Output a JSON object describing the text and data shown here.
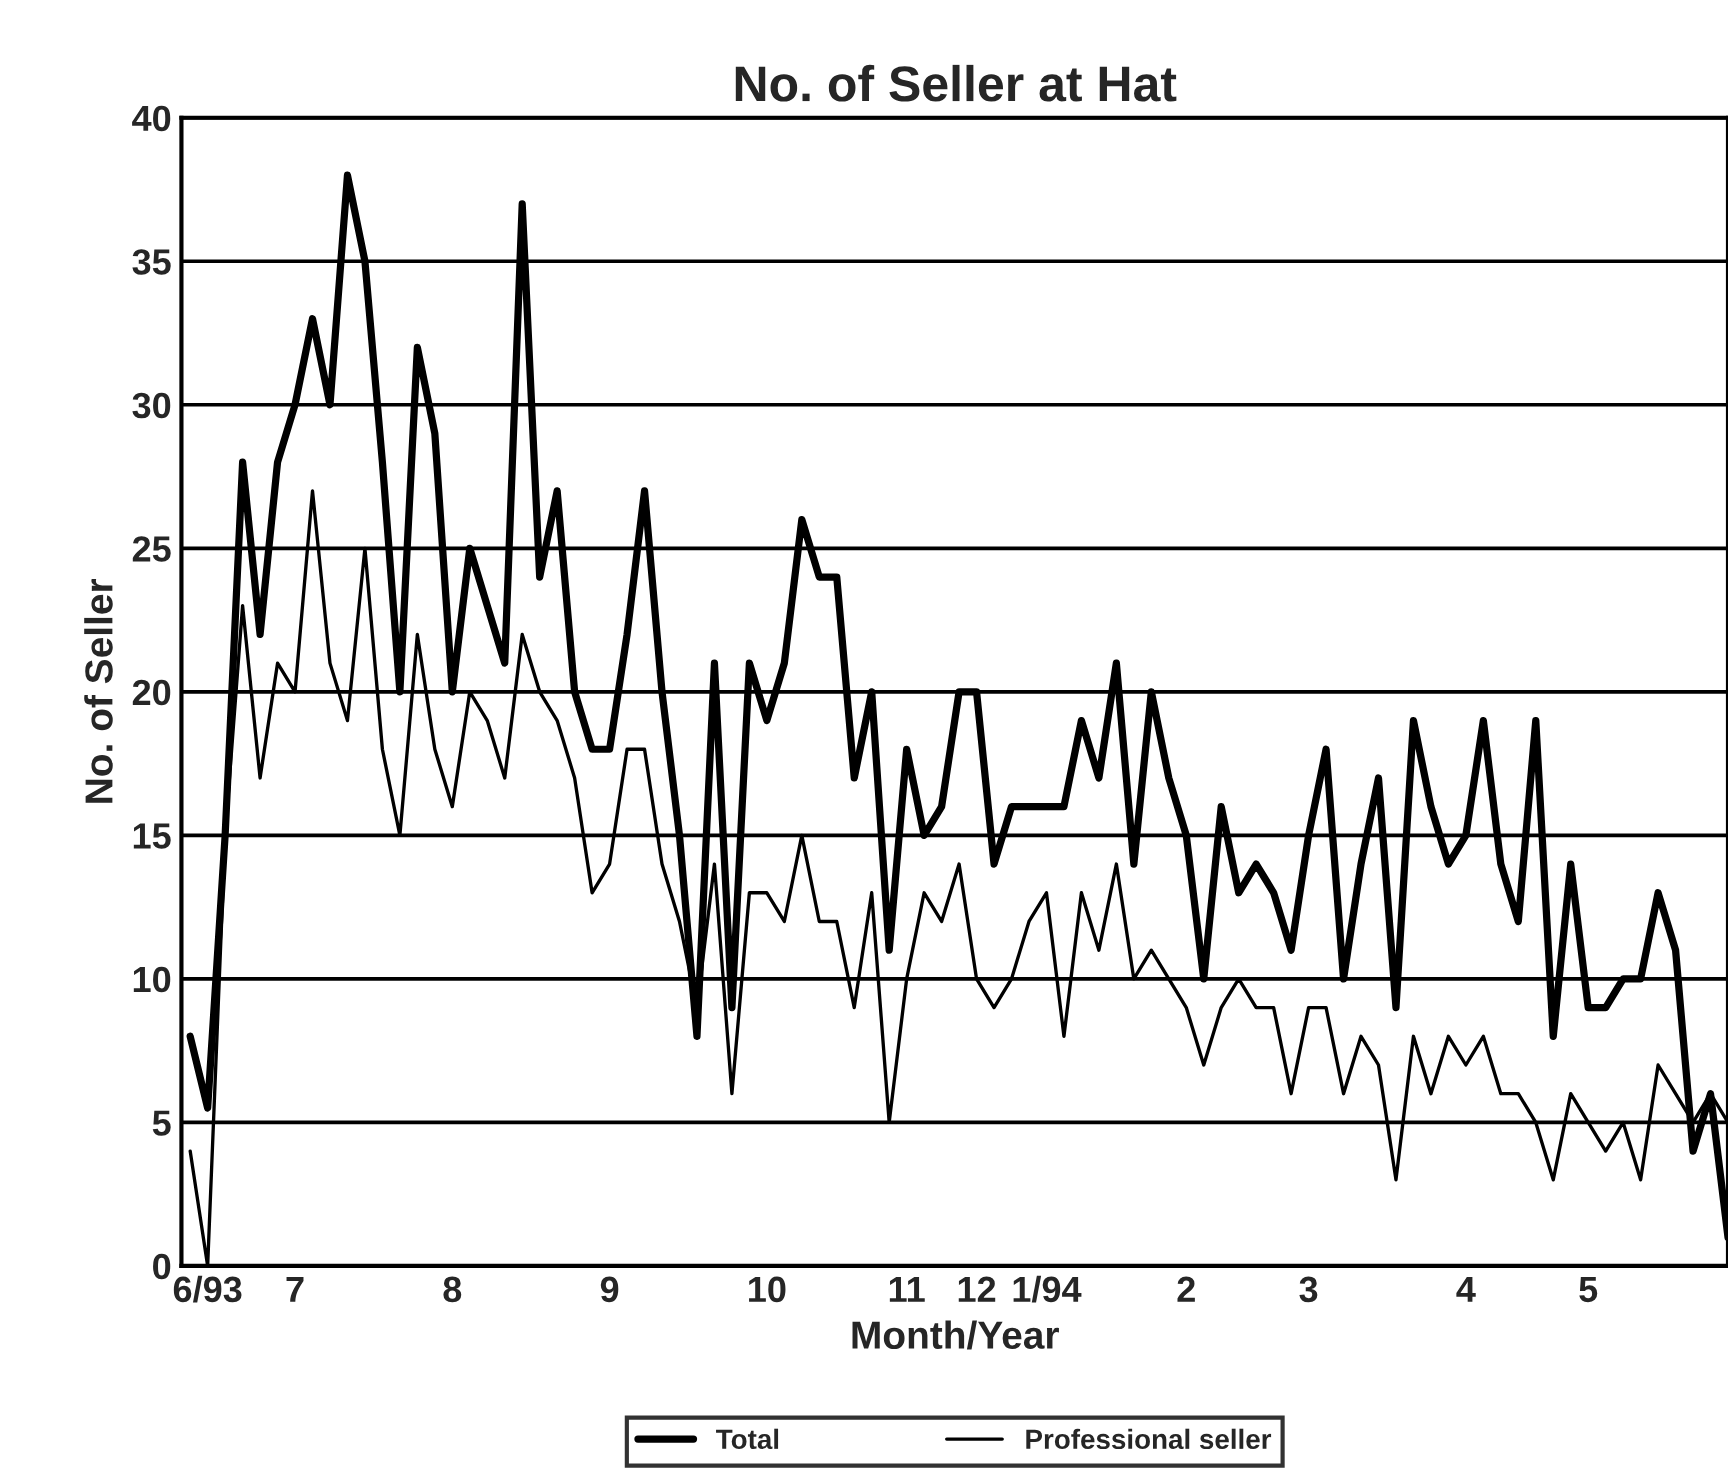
{
  "chart_data": {
    "type": "line",
    "title": "No. of Seller at Hat",
    "xlabel": "Month/Year",
    "ylabel": "No. of Seller",
    "categories": [
      null,
      "6/93",
      null,
      null,
      null,
      null,
      "7",
      null,
      null,
      null,
      null,
      null,
      null,
      null,
      null,
      "8",
      null,
      null,
      null,
      null,
      null,
      null,
      null,
      null,
      "9",
      null,
      null,
      null,
      null,
      null,
      null,
      null,
      null,
      "10",
      null,
      null,
      null,
      null,
      null,
      null,
      null,
      "11",
      null,
      null,
      null,
      "12",
      null,
      null,
      null,
      "1/94",
      null,
      null,
      null,
      null,
      null,
      null,
      null,
      "2",
      null,
      null,
      null,
      null,
      null,
      null,
      "3",
      null,
      null,
      null,
      null,
      null,
      null,
      null,
      null,
      "4",
      null,
      null,
      null,
      null,
      null,
      null,
      "5",
      null,
      null,
      null,
      null,
      null,
      null,
      null,
      null
    ],
    "series": [
      {
        "name": "Total",
        "color": "#000000",
        "values": [
          8,
          5.5,
          15,
          28,
          22,
          28,
          30,
          33,
          30,
          38,
          35,
          28,
          20,
          32,
          29,
          20,
          25,
          23,
          21,
          37,
          24,
          27,
          20,
          18,
          18,
          22,
          27,
          20,
          15,
          8,
          21,
          9,
          21,
          19,
          21,
          26,
          24,
          24,
          17,
          20,
          11,
          18,
          15,
          16,
          20,
          20,
          14,
          16,
          16,
          16,
          16,
          19,
          17,
          21,
          14,
          20,
          17,
          15,
          10,
          16,
          13,
          14,
          13,
          11,
          15,
          18,
          10,
          14,
          17,
          9,
          19,
          16,
          14,
          15,
          19,
          14,
          12,
          19,
          8,
          14,
          9,
          9,
          10,
          10,
          13,
          11,
          4,
          6,
          1
        ]
      },
      {
        "name": "Professional seller",
        "color": "#000000",
        "values": [
          4,
          0,
          15,
          23,
          17,
          21,
          20,
          27,
          21,
          19,
          25,
          18,
          15,
          22,
          18,
          16,
          20,
          19,
          17,
          22,
          20,
          19,
          17,
          13,
          14,
          18,
          18,
          14,
          12,
          9,
          14,
          6,
          13,
          13,
          12,
          15,
          12,
          12,
          9,
          13,
          5,
          10,
          13,
          12,
          14,
          10,
          9,
          10,
          12,
          13,
          8,
          13,
          11,
          14,
          10,
          11,
          10,
          9,
          7,
          9,
          10,
          9,
          9,
          6,
          9,
          9,
          6,
          8,
          7,
          3,
          8,
          6,
          8,
          7,
          8,
          6,
          6,
          5,
          3,
          6,
          5,
          4,
          5,
          3,
          7,
          6,
          5,
          6,
          5
        ]
      }
    ],
    "ylim": [
      0,
      40
    ],
    "yticks": [
      0,
      5,
      10,
      15,
      20,
      25,
      30,
      35,
      40
    ],
    "grid": "y",
    "legend": "bottom"
  }
}
